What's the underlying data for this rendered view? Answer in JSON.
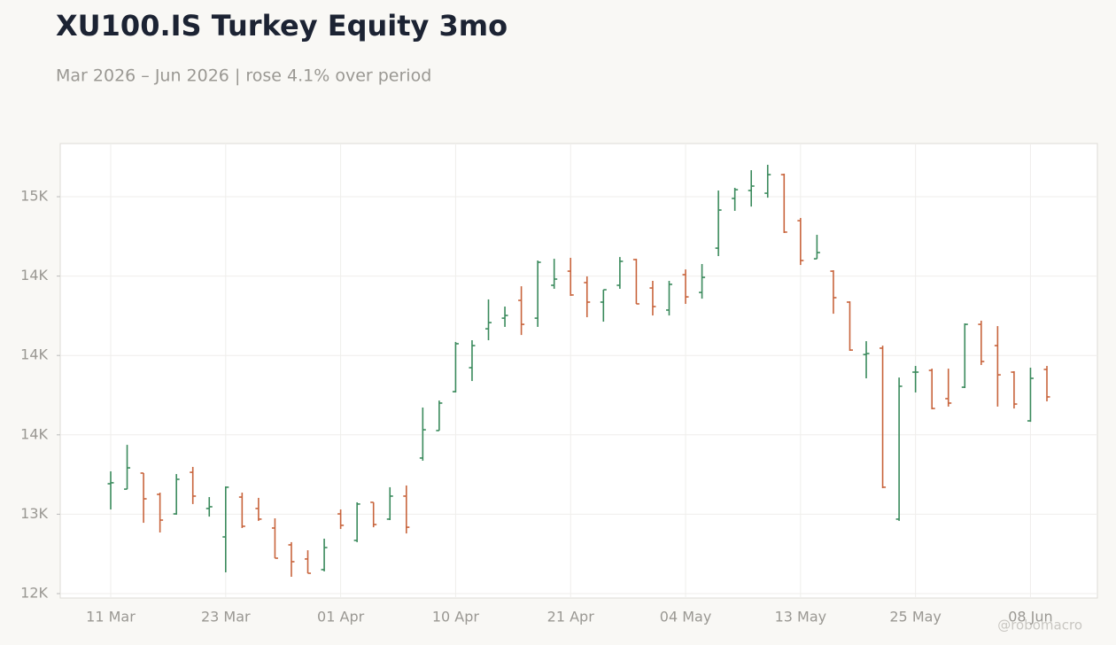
{
  "chart_data": {
    "type": "ohlc",
    "title": "XU100.IS Turkey Equity 3mo",
    "subtitle": "Mar 2026 – Jun 2026 | rose 4.1% over period",
    "watermark": "@robomacro",
    "categories": [
      "11 Mar",
      null,
      null,
      null,
      null,
      null,
      null,
      "23 Mar",
      null,
      null,
      null,
      null,
      null,
      null,
      "01 Apr",
      null,
      null,
      null,
      null,
      null,
      null,
      "10 Apr",
      null,
      null,
      null,
      null,
      null,
      null,
      "21 Apr",
      null,
      null,
      null,
      null,
      null,
      null,
      "04 May",
      null,
      null,
      null,
      null,
      null,
      null,
      "13 May",
      null,
      null,
      null,
      null,
      null,
      null,
      "25 May",
      null,
      null,
      null,
      null,
      null,
      null,
      "08 Jun",
      null
    ],
    "series": [
      {
        "open": [
          13192,
          13158,
          13259,
          13125,
          13002,
          13264,
          13036,
          12857,
          13108,
          13036,
          12913,
          12807,
          12718,
          12651,
          13002,
          12835,
          13075,
          12969,
          13114,
          13354,
          13527,
          13772,
          13923,
          14168,
          14235,
          14347,
          14235,
          14442,
          14531,
          14459,
          14336,
          14442,
          14604,
          14425,
          14286,
          14509,
          14397,
          14676,
          14989,
          15039,
          15022,
          15139,
          14849,
          14609,
          14531,
          14336,
          14006,
          14046,
          12969,
          13895,
          13906,
          13728,
          13800,
          14196,
          14062,
          13895,
          13588,
          13912
        ],
        "high": [
          13270,
          13437,
          13259,
          13136,
          13253,
          13298,
          13108,
          13175,
          13136,
          13103,
          12974,
          12824,
          12773,
          12846,
          13030,
          13075,
          13075,
          13170,
          13181,
          13672,
          13716,
          14085,
          14096,
          14353,
          14308,
          14436,
          14598,
          14609,
          14615,
          14498,
          14414,
          14620,
          14609,
          14470,
          14470,
          14542,
          14576,
          15039,
          15056,
          15167,
          15201,
          15145,
          14866,
          14760,
          14537,
          14341,
          14090,
          14062,
          13861,
          13934,
          13917,
          13917,
          14202,
          14219,
          14185,
          13901,
          13923,
          13934
        ],
        "low": [
          13030,
          13158,
          12946,
          12885,
          12997,
          13064,
          12985,
          12634,
          12913,
          12958,
          12723,
          12606,
          12628,
          12640,
          12907,
          12824,
          12918,
          12963,
          12879,
          13337,
          13527,
          13767,
          13839,
          14096,
          14180,
          14129,
          14180,
          14420,
          14375,
          14241,
          14213,
          14420,
          14325,
          14252,
          14252,
          14325,
          14358,
          14626,
          14911,
          14938,
          14994,
          14771,
          14570,
          14609,
          14263,
          14029,
          13856,
          13164,
          12958,
          13767,
          13661,
          13678,
          13795,
          13940,
          13678,
          13666,
          13582,
          13711
        ],
        "close": [
          13198,
          13292,
          13097,
          12963,
          13220,
          13114,
          13047,
          13170,
          12924,
          12969,
          12723,
          12701,
          12628,
          12790,
          12930,
          13064,
          12935,
          13114,
          12918,
          13532,
          13700,
          14074,
          14062,
          14207,
          14252,
          14196,
          14587,
          14481,
          14381,
          14336,
          14414,
          14593,
          14325,
          14308,
          14448,
          14369,
          14492,
          14916,
          15044,
          15067,
          15139,
          14777,
          14598,
          14648,
          14364,
          14034,
          14012,
          13170,
          13806,
          13895,
          13666,
          13700,
          14196,
          13962,
          13878,
          13694,
          13856,
          13739
        ]
      }
    ],
    "up_color": "#3a8a5c",
    "down_color": "#c8643c",
    "ylim": [
      12472,
      15335
    ],
    "yticks": [
      {
        "value": 12500,
        "label": "12K"
      },
      {
        "value": 13000,
        "label": "13K"
      },
      {
        "value": 13500,
        "label": "14K"
      },
      {
        "value": 14000,
        "label": "14K"
      },
      {
        "value": 14500,
        "label": "14K"
      },
      {
        "value": 15000,
        "label": "15K"
      }
    ],
    "grid": true
  }
}
